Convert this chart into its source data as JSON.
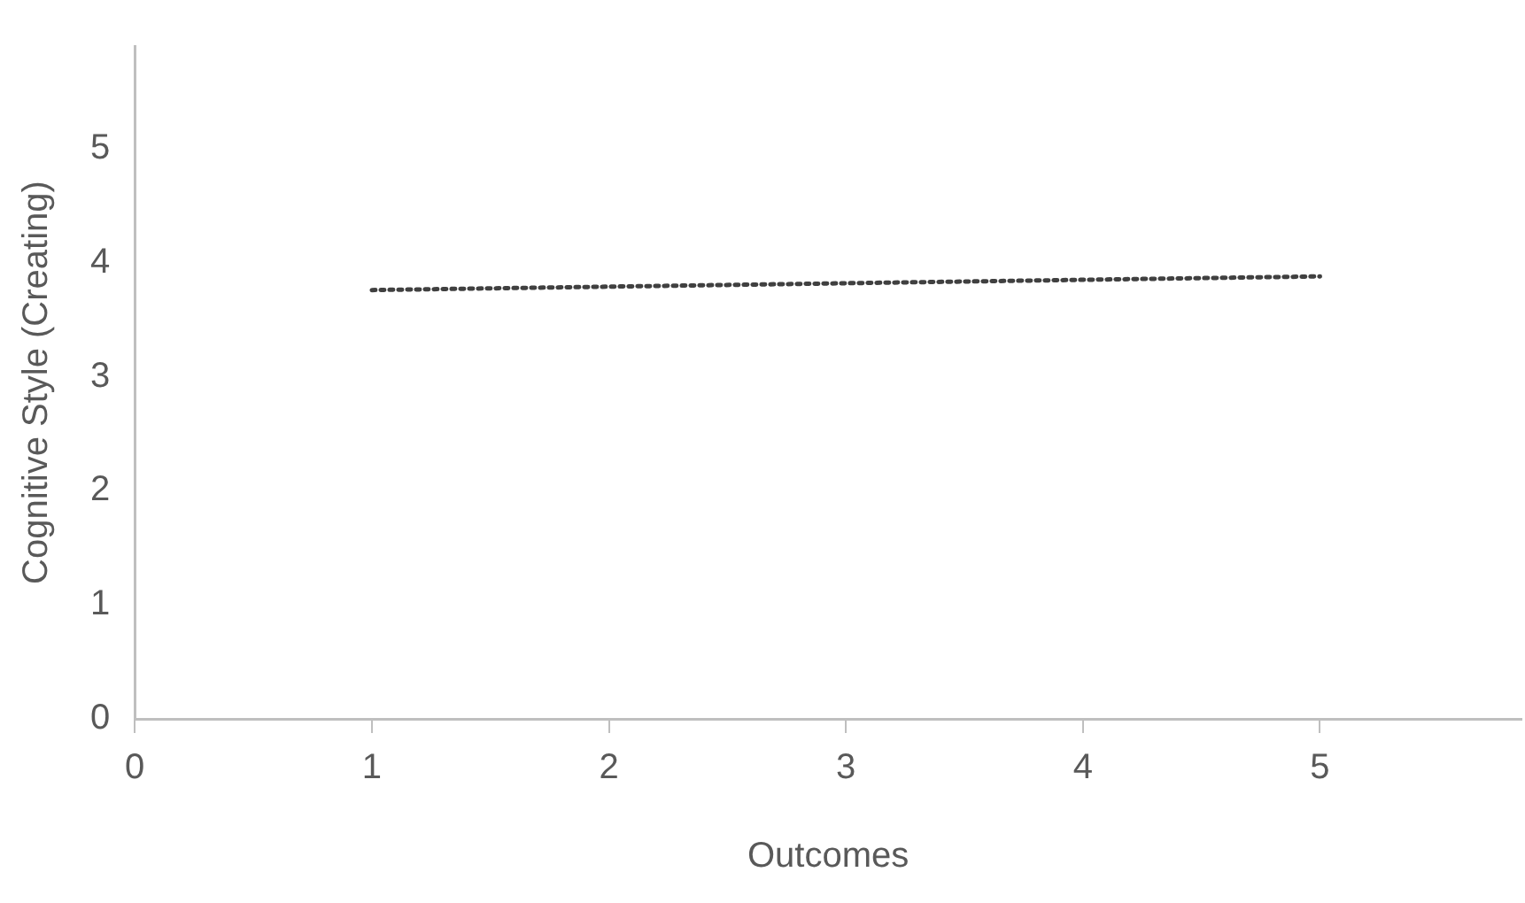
{
  "chart_data": {
    "type": "line",
    "xlabel": "Outcomes",
    "ylabel": "Cognitive Style (Creating)",
    "x": [
      1,
      2,
      3,
      4,
      5
    ],
    "series": [
      {
        "color": "#404040",
        "values": [
          3.76,
          3.79,
          3.82,
          3.85,
          3.88
        ]
      }
    ],
    "xlim": [
      0,
      5.85
    ],
    "xticks": [
      0,
      1,
      2,
      3,
      4,
      5
    ],
    "ylim": [
      0,
      5.9
    ],
    "yticks": [
      0,
      1,
      2,
      3,
      4,
      5
    ],
    "grid": false,
    "legend": false,
    "marker": "none",
    "line_style": "dotted"
  }
}
